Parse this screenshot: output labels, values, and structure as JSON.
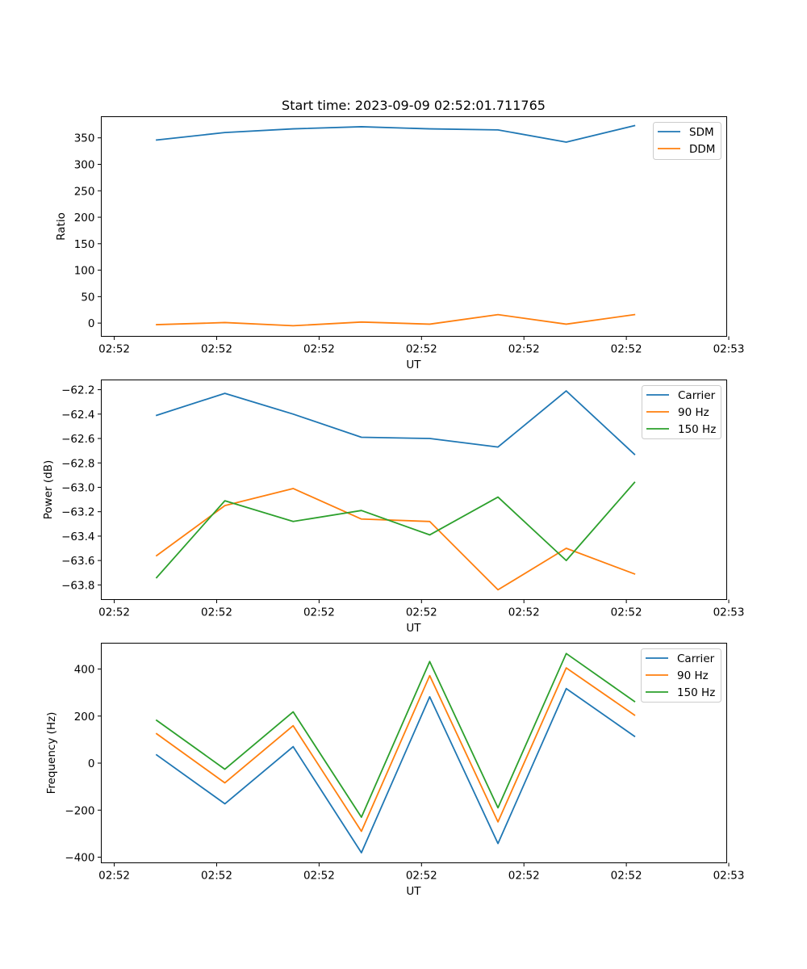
{
  "chart_data": [
    {
      "type": "line",
      "title": "Start time: 2023-09-09 02:52:01.711765",
      "xlabel": "UT",
      "ylabel": "Ratio",
      "x": [
        1,
        2,
        3,
        4,
        5,
        6,
        7,
        8
      ],
      "xlim": [
        0.19,
        9.35
      ],
      "x_ticks": [
        0.38,
        1.88,
        3.38,
        4.88,
        6.38,
        7.88,
        9.38
      ],
      "x_tick_labels": [
        "02:52",
        "02:52",
        "02:52",
        "02:52",
        "02:52",
        "02:52",
        "02:53"
      ],
      "ylim": [
        -25,
        390
      ],
      "y_ticks": [
        0,
        50,
        100,
        150,
        200,
        250,
        300,
        350
      ],
      "y_tick_labels": [
        "0",
        "50",
        "100",
        "150",
        "200",
        "250",
        "300",
        "350"
      ],
      "legend": "top-right",
      "series": [
        {
          "name": "SDM",
          "color": "#1f77b4",
          "values": [
            346,
            360,
            367,
            371,
            367,
            365,
            342,
            373
          ]
        },
        {
          "name": "DDM",
          "color": "#ff7f0e",
          "values": [
            -3,
            1,
            -5,
            2,
            -2,
            16,
            -2,
            16
          ]
        }
      ]
    },
    {
      "type": "line",
      "title": "",
      "xlabel": "UT",
      "ylabel": "Power (dB)",
      "x": [
        1,
        2,
        3,
        4,
        5,
        6,
        7,
        8
      ],
      "xlim": [
        0.19,
        9.35
      ],
      "x_ticks": [
        0.38,
        1.88,
        3.38,
        4.88,
        6.38,
        7.88,
        9.38
      ],
      "x_tick_labels": [
        "02:52",
        "02:52",
        "02:52",
        "02:52",
        "02:52",
        "02:52",
        "02:53"
      ],
      "ylim": [
        -63.92,
        -62.12
      ],
      "y_ticks": [
        -63.8,
        -63.6,
        -63.4,
        -63.2,
        -63.0,
        -62.8,
        -62.6,
        -62.4,
        -62.2
      ],
      "y_tick_labels": [
        "−63.8",
        "−63.6",
        "−63.4",
        "−63.2",
        "−63.0",
        "−62.8",
        "−62.6",
        "−62.4",
        "−62.2"
      ],
      "legend": "top-right",
      "series": [
        {
          "name": "Carrier",
          "color": "#1f77b4",
          "values": [
            -62.41,
            -62.23,
            -62.4,
            -62.59,
            -62.6,
            -62.67,
            -62.21,
            -62.73
          ]
        },
        {
          "name": "90 Hz",
          "color": "#ff7f0e",
          "values": [
            -63.56,
            -63.15,
            -63.01,
            -63.26,
            -63.28,
            -63.84,
            -63.5,
            -63.71
          ]
        },
        {
          "name": "150 Hz",
          "color": "#2ca02c",
          "values": [
            -63.74,
            -63.11,
            -63.28,
            -63.19,
            -63.39,
            -63.08,
            -63.6,
            -62.96
          ]
        }
      ]
    },
    {
      "type": "line",
      "title": "",
      "xlabel": "UT",
      "ylabel": "Frequency (Hz)",
      "x": [
        1,
        2,
        3,
        4,
        5,
        6,
        7,
        8
      ],
      "xlim": [
        0.19,
        9.35
      ],
      "x_ticks": [
        0.38,
        1.88,
        3.38,
        4.88,
        6.38,
        7.88,
        9.38
      ],
      "x_tick_labels": [
        "02:52",
        "02:52",
        "02:52",
        "02:52",
        "02:52",
        "02:52",
        "02:53"
      ],
      "ylim": [
        -424,
        510
      ],
      "y_ticks": [
        -400,
        -200,
        0,
        200,
        400
      ],
      "y_tick_labels": [
        "−400",
        "−200",
        "0",
        "200",
        "400"
      ],
      "legend": "top-right",
      "series": [
        {
          "name": "Carrier",
          "color": "#1f77b4",
          "values": [
            35,
            -173,
            70,
            -381,
            282,
            -342,
            317,
            114
          ]
        },
        {
          "name": "90 Hz",
          "color": "#ff7f0e",
          "values": [
            125,
            -84,
            159,
            -290,
            372,
            -250,
            405,
            204
          ]
        },
        {
          "name": "150 Hz",
          "color": "#2ca02c",
          "values": [
            182,
            -26,
            218,
            -230,
            432,
            -190,
            466,
            262
          ]
        }
      ]
    }
  ]
}
